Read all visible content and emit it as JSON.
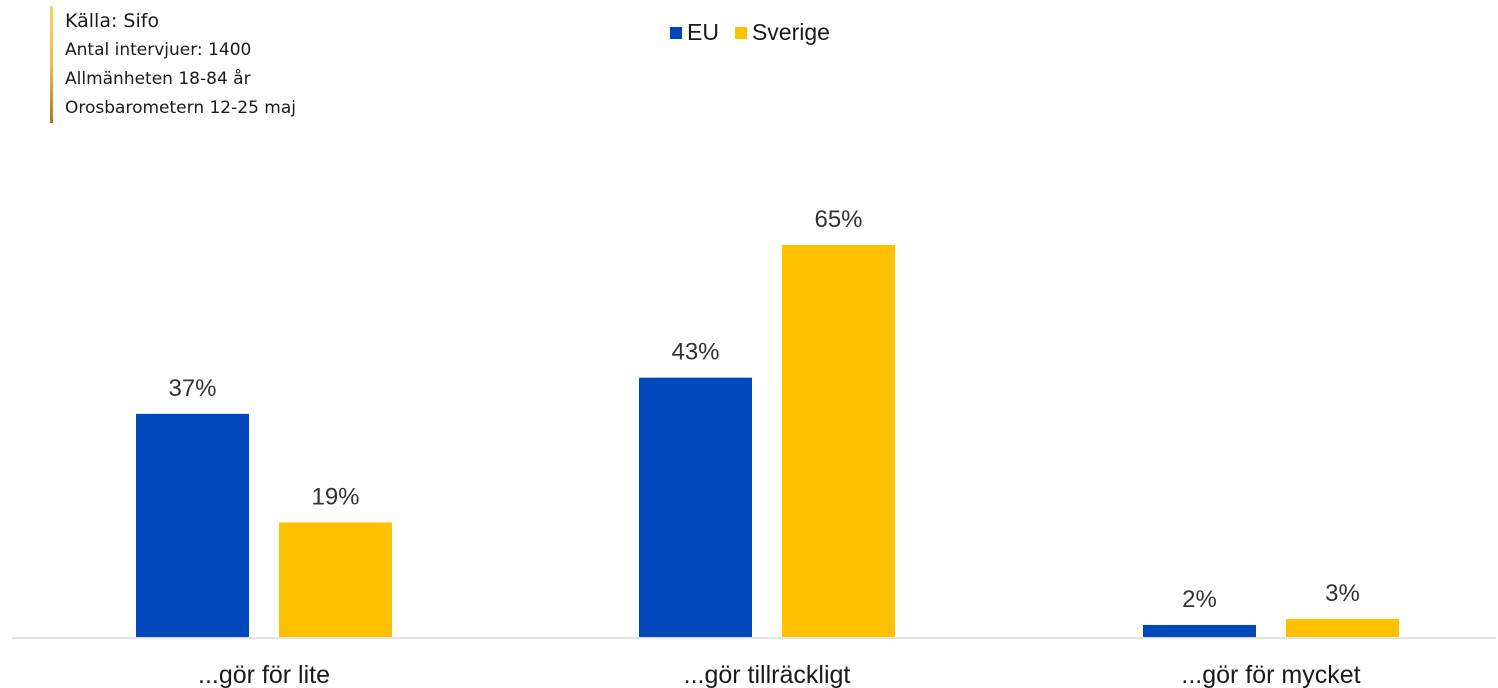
{
  "source": {
    "title": "Källa: Sifo",
    "lines": [
      "Antal intervjuer: 1400",
      "Allmänheten 18-84 år",
      "Orosbarometern 12-25 maj"
    ]
  },
  "chart_data": {
    "type": "bar",
    "categories": [
      "...gör för lite",
      "...gör tillräckligt",
      "...gör för mycket"
    ],
    "series": [
      {
        "name": "EU",
        "values": [
          37,
          43,
          2
        ],
        "labels": [
          "37%",
          "43%",
          "2%"
        ],
        "color": "#0047bb"
      },
      {
        "name": "Sverige",
        "values": [
          19,
          65,
          3
        ],
        "labels": [
          "19%",
          "65%",
          "3%"
        ],
        "color": "#ffc000"
      }
    ],
    "ylim": [
      0,
      70
    ],
    "grid": false,
    "legend_position": "top-center",
    "axis_color": "#d9d9d9"
  }
}
